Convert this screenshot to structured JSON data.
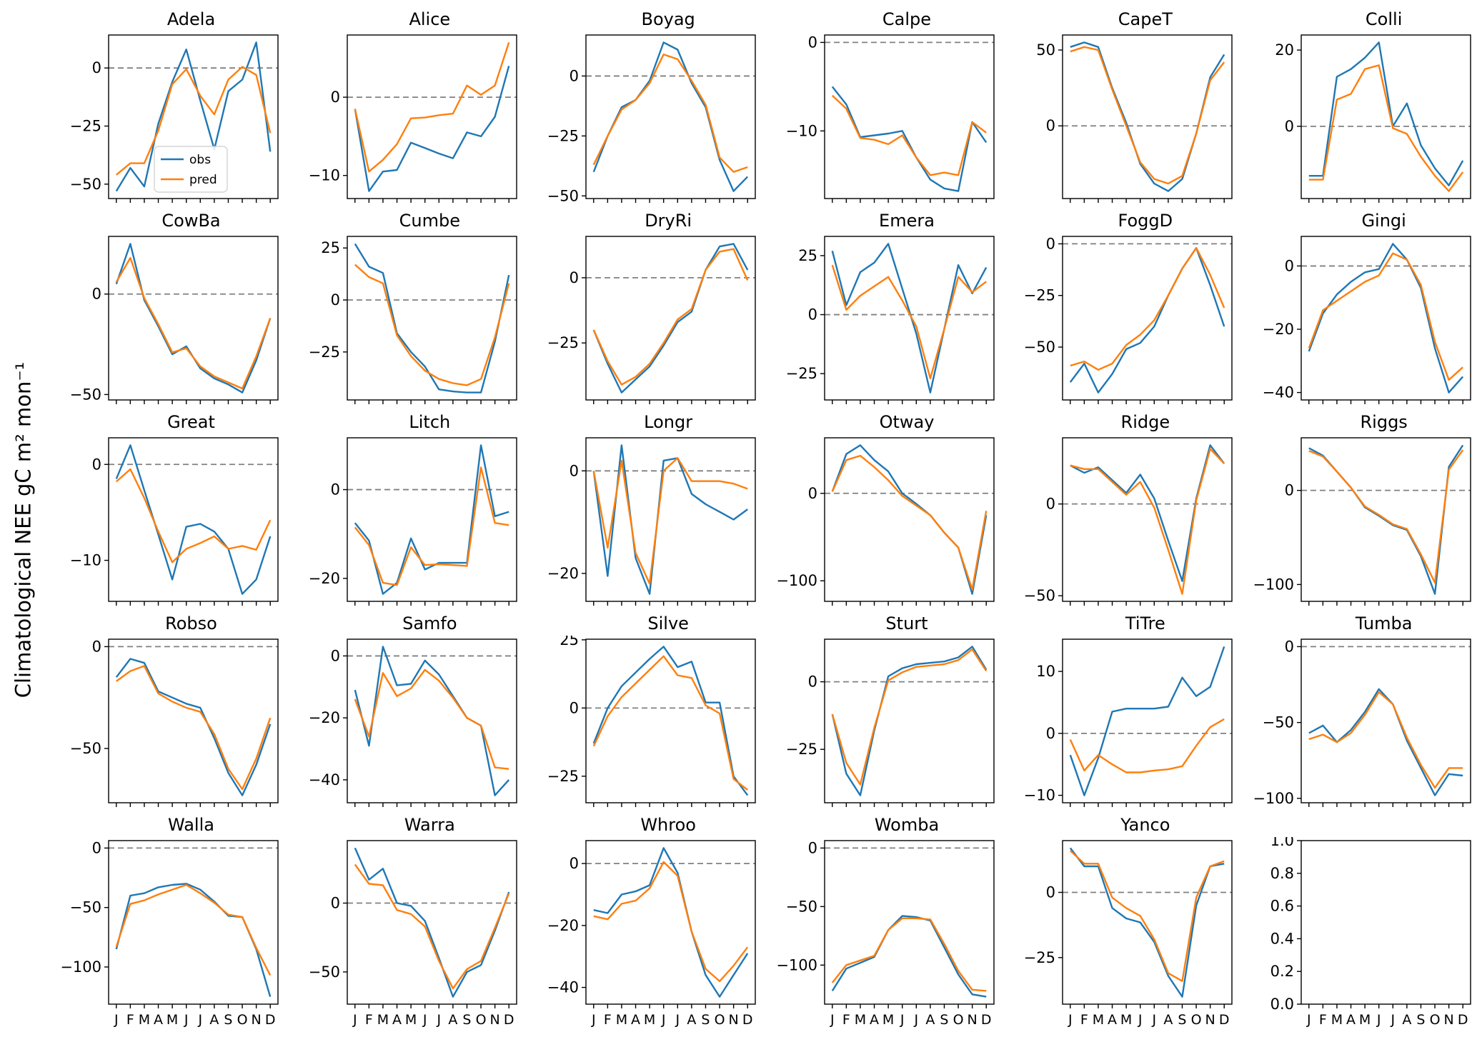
{
  "figure": {
    "ylabel": "Climatological NEE gC m² mon⁻¹",
    "months": [
      "J",
      "F",
      "M",
      "A",
      "M",
      "J",
      "J",
      "A",
      "S",
      "O",
      "N",
      "D"
    ],
    "legend": {
      "obs_label": "obs",
      "pred_label": "pred"
    },
    "colors": {
      "obs": "#1f77b4",
      "pred": "#ff7f0e",
      "zero_line": "#808080",
      "box": "#000000"
    }
  },
  "chart_data": [
    {
      "type": "line",
      "site": "Adela",
      "has_legend": true,
      "yticks": [
        0,
        -25,
        -50
      ],
      "obs": [
        -53,
        -43,
        -51,
        -24,
        -6,
        8,
        -14,
        -35,
        -10,
        -5,
        11,
        -36
      ],
      "pred": [
        -46,
        -41,
        -41,
        -27,
        -7,
        -0.5,
        -12,
        -20,
        -5,
        0.5,
        -3,
        -28
      ]
    },
    {
      "type": "line",
      "site": "Alice",
      "yticks": [
        0,
        -10
      ],
      "obs": [
        -1.5,
        -12,
        -9.5,
        -9.3,
        -5.8,
        -6.5,
        -7.2,
        -7.8,
        -4.5,
        -5,
        -2.5,
        4
      ],
      "pred": [
        -1.5,
        -9.5,
        -8,
        -6,
        -2.7,
        -2.6,
        -2.3,
        -2.1,
        1.5,
        0.3,
        1.5,
        7
      ]
    },
    {
      "type": "line",
      "site": "Boyag",
      "yticks": [
        0,
        -25,
        -50
      ],
      "obs": [
        -40,
        -25,
        -13,
        -10,
        -2,
        14,
        11,
        -3,
        -13,
        -35,
        -48,
        -42
      ],
      "pred": [
        -37,
        -25,
        -14,
        -10,
        -3,
        9,
        7,
        -2,
        -12,
        -34,
        -40,
        -38
      ]
    },
    {
      "type": "line",
      "site": "Calpe",
      "yticks": [
        0,
        -10
      ],
      "obs": [
        -5,
        -7,
        -10.7,
        -10.5,
        -10.3,
        -10,
        -13,
        -15.5,
        -16.5,
        -16.8,
        -9,
        -11.3
      ],
      "pred": [
        -6,
        -7.5,
        -10.8,
        -11,
        -11.5,
        -10.5,
        -13,
        -15,
        -14.7,
        -15,
        -9,
        -10.2
      ]
    },
    {
      "type": "line",
      "site": "CapeT",
      "yticks": [
        50,
        0
      ],
      "obs": [
        52,
        55,
        52,
        25,
        2,
        -25,
        -38,
        -43,
        -35,
        -5,
        32,
        47
      ],
      "pred": [
        49,
        52,
        50,
        24,
        0,
        -24,
        -35,
        -38,
        -33,
        -5,
        30,
        42
      ]
    },
    {
      "type": "line",
      "site": "Colli",
      "yticks": [
        20,
        0
      ],
      "obs": [
        -13,
        -13,
        13,
        15,
        18,
        22,
        0,
        6,
        -5,
        -11,
        -15.5,
        -9
      ],
      "pred": [
        -14,
        -14,
        7,
        8.5,
        15,
        16,
        -0.5,
        -2,
        -8,
        -13,
        -17,
        -12
      ]
    },
    {
      "type": "line",
      "site": "CowBa",
      "yticks": [
        0,
        -50
      ],
      "obs": [
        5,
        25,
        -3,
        -16,
        -30,
        -26,
        -37,
        -42,
        -45,
        -49,
        -33,
        -12
      ],
      "pred": [
        6,
        18,
        -2,
        -15,
        -29,
        -27,
        -36,
        -41,
        -44,
        -47,
        -31,
        -12
      ]
    },
    {
      "type": "line",
      "site": "Cumbe",
      "yticks": [
        25,
        0,
        -25
      ],
      "obs": [
        27,
        16,
        13,
        -16,
        -25,
        -32,
        -43,
        -44,
        -44.5,
        -44.5,
        -20,
        12
      ],
      "pred": [
        17,
        11,
        8,
        -17,
        -27,
        -34,
        -38,
        -40,
        -41,
        -38,
        -18,
        8
      ]
    },
    {
      "type": "line",
      "site": "DryRi",
      "yticks": [
        0,
        -25
      ],
      "obs": [
        -20,
        -33,
        -44,
        -39,
        -34,
        -26,
        -17,
        -13,
        3,
        12,
        13,
        3
      ],
      "pred": [
        -20,
        -32,
        -41,
        -38,
        -33,
        -25,
        -16,
        -12,
        3,
        10,
        11,
        -1
      ]
    },
    {
      "type": "line",
      "site": "Emera",
      "yticks": [
        25,
        0,
        -25
      ],
      "obs": [
        27,
        4,
        18,
        22,
        30,
        11,
        -8,
        -33,
        -6,
        21,
        9,
        20
      ],
      "pred": [
        21,
        2,
        8,
        12,
        16,
        6,
        -5,
        -27,
        -6,
        16,
        9.5,
        14
      ]
    },
    {
      "type": "line",
      "site": "FoggD",
      "yticks": [
        0,
        -25,
        -50
      ],
      "obs": [
        -67,
        -58,
        -72,
        -63,
        -51,
        -48,
        -40,
        -25,
        -12,
        -2,
        -20,
        -40
      ],
      "pred": [
        -59,
        -57,
        -61,
        -58,
        -49,
        -44,
        -37,
        -25,
        -12,
        -2,
        -15,
        -31
      ]
    },
    {
      "type": "line",
      "site": "Gingi",
      "yticks": [
        0,
        -20,
        -40
      ],
      "obs": [
        -27,
        -15,
        -9,
        -5,
        -2,
        -1,
        7,
        2,
        -7,
        -26,
        -40,
        -35
      ],
      "pred": [
        -26,
        -14,
        -11,
        -8,
        -5,
        -3,
        4,
        2,
        -6,
        -24,
        -36,
        -32
      ]
    },
    {
      "type": "line",
      "site": "Great",
      "yticks": [
        0,
        -10
      ],
      "obs": [
        -1.5,
        2,
        -2.7,
        -7.3,
        -12,
        -6.5,
        -6.2,
        -7,
        -8.8,
        -13.5,
        -12,
        -7.5
      ],
      "pred": [
        -1.8,
        -0.5,
        -3.5,
        -7,
        -10.2,
        -8.8,
        -8.2,
        -7.5,
        -8.8,
        -8.5,
        -8.9,
        -5.8
      ]
    },
    {
      "type": "line",
      "site": "Litch",
      "yticks": [
        0,
        -20
      ],
      "obs": [
        -7.5,
        -11.5,
        -23.5,
        -21,
        -11,
        -18,
        -16.5,
        -16.5,
        -16.5,
        10,
        -6,
        -5
      ],
      "pred": [
        -8.5,
        -12.5,
        -21,
        -21.5,
        -13,
        -17,
        -16.8,
        -17,
        -17.2,
        5,
        -7.5,
        -8
      ]
    },
    {
      "type": "line",
      "site": "Longr",
      "yticks": [
        0,
        -20
      ],
      "obs": [
        0,
        -20.5,
        5,
        -17,
        -24,
        2,
        2.5,
        -4.5,
        -6.5,
        -8,
        -9.5,
        -7.5
      ],
      "pred": [
        0,
        -15,
        2,
        -16,
        -22,
        0,
        2.5,
        -2,
        -2,
        -2,
        -2.5,
        -3.5
      ]
    },
    {
      "type": "line",
      "site": "Otway",
      "yticks": [
        0,
        -100
      ],
      "obs": [
        2,
        45,
        55,
        38,
        25,
        0,
        -12,
        -25,
        -45,
        -62,
        -115,
        -25
      ],
      "pred": [
        2,
        38,
        43,
        30,
        15,
        -3,
        -14,
        -25,
        -45,
        -62,
        -110,
        -20
      ]
    },
    {
      "type": "line",
      "site": "Ridge",
      "yticks": [
        0,
        -50
      ],
      "obs": [
        21,
        17,
        20,
        13,
        6,
        16,
        3,
        -20,
        -42,
        3,
        32,
        22
      ],
      "pred": [
        21,
        19,
        19,
        12,
        5,
        12,
        -2,
        -25,
        -49,
        2,
        30,
        22
      ]
    },
    {
      "type": "line",
      "site": "Riggs",
      "yticks": [
        0,
        -100
      ],
      "obs": [
        45,
        37,
        20,
        3,
        -18,
        -27,
        -37,
        -42,
        -70,
        -110,
        25,
        48
      ],
      "pred": [
        42,
        36,
        20,
        3,
        -17,
        -26,
        -36,
        -41,
        -68,
        -98,
        22,
        43
      ]
    },
    {
      "type": "line",
      "site": "Robso",
      "yticks": [
        0,
        -50
      ],
      "obs": [
        -15,
        -6,
        -8,
        -22,
        -25,
        -28,
        -30,
        -45,
        -62,
        -73,
        -58,
        -38
      ],
      "pred": [
        -17,
        -12,
        -9.5,
        -23,
        -27,
        -30,
        -32,
        -43,
        -60,
        -70,
        -55,
        -35
      ]
    },
    {
      "type": "line",
      "site": "Samfo",
      "yticks": [
        0,
        -20,
        -40
      ],
      "obs": [
        -11,
        -29,
        3,
        -9.5,
        -9,
        -1.5,
        -6,
        -13,
        -20,
        -22.5,
        -45,
        -40
      ],
      "pred": [
        -14,
        -26,
        -5.5,
        -13,
        -10.5,
        -4.5,
        -8,
        -13.5,
        -20,
        -22.5,
        -36,
        -36.5
      ]
    },
    {
      "type": "line",
      "site": "Silve",
      "yticks": [
        25,
        0,
        -25
      ],
      "obs": [
        -13,
        0,
        8,
        13,
        18,
        22.5,
        15,
        17,
        2,
        2,
        -25,
        -32
      ],
      "pred": [
        -14,
        -3,
        4,
        9,
        14,
        19,
        12,
        11,
        1,
        -2,
        -26,
        -30
      ]
    },
    {
      "type": "line",
      "site": "Sturt",
      "yticks": [
        0,
        -25
      ],
      "obs": [
        -12,
        -34,
        -42,
        -18,
        2,
        5,
        6.5,
        7,
        7.5,
        9,
        13,
        4.5
      ],
      "pred": [
        -12,
        -30,
        -38,
        -17,
        0.5,
        3.5,
        5.5,
        6,
        6.5,
        8,
        12,
        4
      ]
    },
    {
      "type": "line",
      "site": "TiTre",
      "yticks": [
        10,
        0,
        -10
      ],
      "obs": [
        -3.5,
        -10,
        -4,
        3.5,
        4,
        4,
        4,
        4.3,
        9,
        6,
        7.5,
        14
      ],
      "pred": [
        -1,
        -6,
        -3.5,
        -5,
        -6.3,
        -6.3,
        -6,
        -5.8,
        -5.3,
        -2,
        1,
        2.3
      ]
    },
    {
      "type": "line",
      "site": "Tumba",
      "yticks": [
        0,
        -50,
        -100
      ],
      "obs": [
        -57,
        -52,
        -63,
        -55,
        -43,
        -28,
        -38,
        -62,
        -80,
        -98,
        -84,
        -85
      ],
      "pred": [
        -61,
        -58,
        -63,
        -57,
        -45,
        -30,
        -38,
        -60,
        -78,
        -93,
        -80,
        -80
      ]
    },
    {
      "type": "line",
      "site": "Walla",
      "yticks": [
        0,
        -50,
        -100
      ],
      "obs": [
        -85,
        -40,
        -38,
        -33,
        -31,
        -30,
        -35,
        -45,
        -57,
        -58,
        -85,
        -125
      ],
      "pred": [
        -83,
        -47,
        -44,
        -39,
        -35,
        -31,
        -38,
        -46,
        -56,
        -58,
        -84,
        -107
      ]
    },
    {
      "type": "line",
      "site": "Warra",
      "yticks": [
        0,
        -50
      ],
      "obs": [
        40,
        17,
        25,
        0,
        -2,
        -13,
        -40,
        -68,
        -50,
        -45,
        -20,
        8
      ],
      "pred": [
        28,
        14,
        13,
        -5,
        -8,
        -17,
        -42,
        -62,
        -48,
        -42,
        -18,
        7
      ]
    },
    {
      "type": "line",
      "site": "Whroo",
      "yticks": [
        0,
        -20,
        -40
      ],
      "obs": [
        -15,
        -16,
        -10,
        -9,
        -7,
        5,
        -3,
        -22,
        -36,
        -43,
        -36,
        -29
      ],
      "pred": [
        -17,
        -18,
        -13,
        -12,
        -8,
        0.5,
        -4,
        -22,
        -34,
        -38,
        -33,
        -27
      ]
    },
    {
      "type": "line",
      "site": "Womba",
      "yticks": [
        0,
        -50,
        -100
      ],
      "obs": [
        -122,
        -103,
        -98,
        -93,
        -70,
        -58,
        -59,
        -62,
        -85,
        -108,
        -125,
        -127
      ],
      "pred": [
        -115,
        -100,
        -96,
        -92,
        -70,
        -60,
        -60,
        -61,
        -82,
        -105,
        -121,
        -122
      ]
    },
    {
      "type": "line",
      "site": "Yanco",
      "yticks": [
        0,
        -25
      ],
      "obs": [
        17,
        10,
        10,
        -6,
        -10,
        -11.5,
        -19,
        -32,
        -40,
        -5,
        10,
        11
      ],
      "pred": [
        16,
        11,
        11,
        -2,
        -6,
        -9,
        -18,
        -31,
        -34,
        -2,
        10,
        12
      ]
    },
    {
      "type": "line",
      "site": "",
      "empty": true,
      "yticks": [
        1.0,
        0.8,
        0.6,
        0.4,
        0.2,
        0.0
      ]
    }
  ]
}
